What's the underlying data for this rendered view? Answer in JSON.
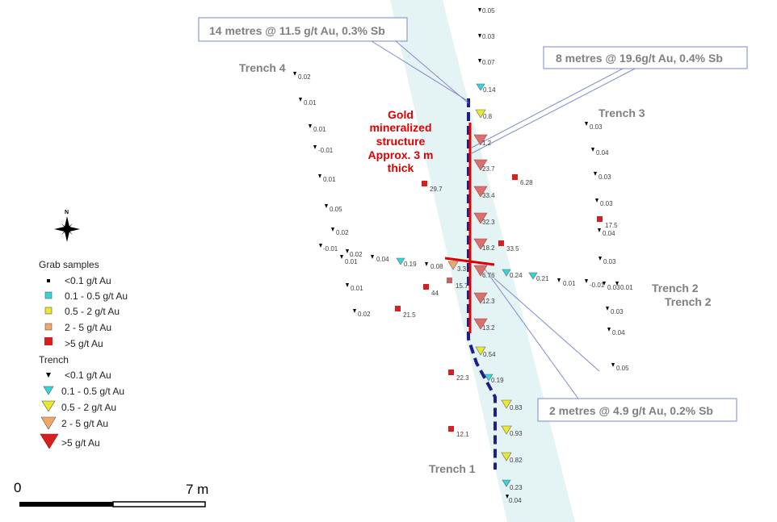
{
  "callouts": {
    "c1": "14 metres @ 11.5 g/t Au, 0.3% Sb",
    "c2": "8 metres @ 19.6g/t Au, 0.4% Sb",
    "c3": "2 metres @ 4.9 g/t Au, 0.2% Sb"
  },
  "trenches": {
    "t1": "Trench 1",
    "t2a": "Trench 2",
    "t2b": "Trench 2",
    "t3": "Trench 3",
    "t4": "Trench 4"
  },
  "structure_label": [
    "Gold",
    "mineralized",
    "structure",
    "Approx. 3 m",
    "thick"
  ],
  "north": "N",
  "scale": {
    "start": "0",
    "end": "7 m"
  },
  "legend": {
    "grab_title": "Grab samples",
    "grab_items": [
      "<0.1 g/t Au",
      "0.1 - 0.5 g/t Au",
      "0.5 - 2 g/t Au",
      "2 - 5 g/t Au",
      ">5 g/t Au"
    ],
    "trench_title": "Trench",
    "trench_items": [
      "<0.1 g/t Au",
      "0.1 - 0.5 g/t Au",
      "0.5 - 2 g/t Au",
      "2 - 5 g/t Au",
      ">5 g/t Au"
    ]
  },
  "colors": {
    "lt01": "#000000",
    "c01_05": "#33d6d6",
    "c05_2": "#e8e82e",
    "c2_5": "#f0a868",
    "gt5": "#d42020",
    "gt5_faded": "#d87070",
    "structure_fill": "#e4f3f4",
    "trench_line": "#1f1f8a",
    "text_grey": "#808080",
    "red_text": "#e00000"
  },
  "samples": [
    {
      "v": "0.05"
    },
    {
      "v": "0.03"
    },
    {
      "v": "0.07"
    },
    {
      "v": "0.14"
    },
    {
      "v": "0.8"
    },
    {
      "v": "1.2"
    },
    {
      "v": "23.7"
    },
    {
      "v": "33.4"
    },
    {
      "v": "32.3"
    },
    {
      "v": "18.2"
    },
    {
      "v": "6.76"
    },
    {
      "v": "12.3"
    },
    {
      "v": "13.2"
    },
    {
      "v": "0.54"
    },
    {
      "v": "0.19"
    },
    {
      "v": "0.83"
    },
    {
      "v": "0.93"
    },
    {
      "v": "0.82"
    },
    {
      "v": "0.23"
    },
    {
      "v": "0.04"
    },
    {
      "v": "0.02"
    },
    {
      "v": "0.01"
    },
    {
      "v": "0.01"
    },
    {
      "v": "-0.01"
    },
    {
      "v": "0.01"
    },
    {
      "v": "0.05"
    },
    {
      "v": "0.02"
    },
    {
      "v": "-0.01"
    },
    {
      "v": "0.02"
    },
    {
      "v": "0.01"
    },
    {
      "v": "0.04"
    },
    {
      "v": "0.19"
    },
    {
      "v": "0.08"
    },
    {
      "v": "3.3"
    },
    {
      "v": "0.01"
    },
    {
      "v": "0.02"
    },
    {
      "v": "0.24"
    },
    {
      "v": "0.21"
    },
    {
      "v": "0.01"
    },
    {
      "v": "-0.01"
    },
    {
      "v": "0.03"
    },
    {
      "v": "0.01"
    },
    {
      "v": "0.03"
    },
    {
      "v": "0.04"
    },
    {
      "v": "0.03"
    },
    {
      "v": "0.03"
    },
    {
      "v": "0.04"
    },
    {
      "v": "0.03"
    },
    {
      "v": "0.03"
    },
    {
      "v": "0.04"
    },
    {
      "v": "0.05"
    },
    {
      "v": "29.7"
    },
    {
      "v": "6.28"
    },
    {
      "v": "17.5"
    },
    {
      "v": "33.5"
    },
    {
      "v": "15.7"
    },
    {
      "v": "44"
    },
    {
      "v": "21.5"
    },
    {
      "v": "22.3"
    },
    {
      "v": "12.1"
    }
  ]
}
